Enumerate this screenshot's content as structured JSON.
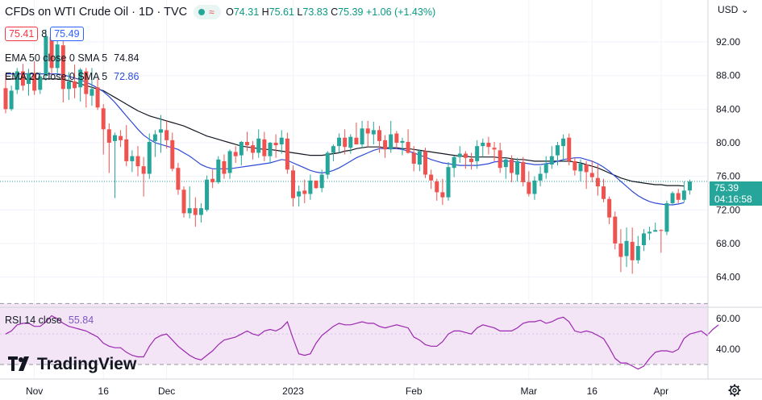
{
  "header": {
    "title": "CFDs on WTI Crude Oil · 1D · TVC",
    "live_wave": "≈",
    "ohlc": {
      "o_label": "O",
      "o": "74.31",
      "h_label": "H",
      "h": "75.61",
      "l_label": "L",
      "l": "73.83",
      "c_label": "C",
      "c": "75.39",
      "change": "+1.06 (+1.43%)"
    }
  },
  "quote": {
    "bid": "75.41",
    "spread": "8",
    "ask": "75.49"
  },
  "indicators": {
    "ema50": {
      "label": "EMA 50 close 0 SMA 5",
      "value": "74.84"
    },
    "ema20": {
      "label": "EMA 20 close 0 SMA 5",
      "value": "72.86"
    },
    "rsi": {
      "label": "RSI 14 close",
      "value": "55.84"
    }
  },
  "axis": {
    "currency": "USD"
  },
  "last_price": {
    "price": "75.39",
    "countdown": "04:16:58"
  },
  "branding": {
    "logo": "TradingView"
  },
  "colors": {
    "up": "#26a69a",
    "down": "#ef5350",
    "ema50": "#131722",
    "ema20": "#2d4ad6",
    "rsi": "#9c27b0",
    "rsi_band": "#f3e5f5"
  },
  "chart_data": {
    "type": "candlestick",
    "price_ylim": [
      60.5,
      97
    ],
    "price_ticks": [
      "64.00",
      "68.00",
      "72.00",
      "76.00",
      "80.00",
      "84.00",
      "88.00",
      "92.00"
    ],
    "rsi_ylim": [
      21,
      67
    ],
    "rsi_ticks": [
      "40.00",
      "60.00"
    ],
    "rsi_band": [
      30,
      70
    ],
    "x_ticks": [
      {
        "label": "Nov",
        "i": 5
      },
      {
        "label": "16",
        "i": 17
      },
      {
        "label": "Dec",
        "i": 28
      },
      {
        "label": "2023",
        "i": 50
      },
      {
        "label": "Feb",
        "i": 71
      },
      {
        "label": "Mar",
        "i": 91
      },
      {
        "label": "16",
        "i": 102
      },
      {
        "label": "Apr",
        "i": 114
      }
    ],
    "candles": [
      [
        86.5,
        88.2,
        83.5,
        84.0
      ],
      [
        84.0,
        86.8,
        83.8,
        86.2
      ],
      [
        86.3,
        88.9,
        85.8,
        88.5
      ],
      [
        88.5,
        89.4,
        86.2,
        86.8
      ],
      [
        87.0,
        88.8,
        85.6,
        88.3
      ],
      [
        88.3,
        89.7,
        85.7,
        86.2
      ],
      [
        86.3,
        88.4,
        85.8,
        87.9
      ],
      [
        88.0,
        93.5,
        87.4,
        92.7
      ],
      [
        92.6,
        93.5,
        88.0,
        88.9
      ],
      [
        88.9,
        92.7,
        88.1,
        91.7
      ],
      [
        91.6,
        93.1,
        84.8,
        86.4
      ],
      [
        86.4,
        88.4,
        85.1,
        87.3
      ],
      [
        87.3,
        89.3,
        85.3,
        86.5
      ],
      [
        86.6,
        88.9,
        84.9,
        88.7
      ],
      [
        88.5,
        88.9,
        84.2,
        85.8
      ],
      [
        85.6,
        88.9,
        84.4,
        86.4
      ],
      [
        86.6,
        87.6,
        83.9,
        84.2
      ],
      [
        84.1,
        84.6,
        78.6,
        81.6
      ],
      [
        81.6,
        82.3,
        76.4,
        80.0
      ],
      [
        80.2,
        81.2,
        73.4,
        80.9
      ],
      [
        80.8,
        81.5,
        79.5,
        80.3
      ],
      [
        80.4,
        82.1,
        77.2,
        77.8
      ],
      [
        77.8,
        79.1,
        76.5,
        78.4
      ],
      [
        78.4,
        79.6,
        76.0,
        77.2
      ],
      [
        77.2,
        78.3,
        73.6,
        76.3
      ],
      [
        76.3,
        81.1,
        75.7,
        80.1
      ],
      [
        80.2,
        81.5,
        78.3,
        81.0
      ],
      [
        81.2,
        83.3,
        78.8,
        81.6
      ],
      [
        81.5,
        82.6,
        79.3,
        80.3
      ],
      [
        80.3,
        81.2,
        76.6,
        76.9
      ],
      [
        77.0,
        77.6,
        73.8,
        74.4
      ],
      [
        74.4,
        74.8,
        71.1,
        71.6
      ],
      [
        71.6,
        74.8,
        71.0,
        72.2
      ],
      [
        72.2,
        73.5,
        70.0,
        71.4
      ],
      [
        71.4,
        72.8,
        70.5,
        72.2
      ],
      [
        72.0,
        76.1,
        71.8,
        75.6
      ],
      [
        75.7,
        76.8,
        74.6,
        75.3
      ],
      [
        75.3,
        78.4,
        75.1,
        78.0
      ],
      [
        77.8,
        78.6,
        75.7,
        76.3
      ],
      [
        76.4,
        79.2,
        75.7,
        79.0
      ],
      [
        78.9,
        79.6,
        77.6,
        78.4
      ],
      [
        78.5,
        80.2,
        77.3,
        80.1
      ],
      [
        80.1,
        81.3,
        79.0,
        79.7
      ],
      [
        79.7,
        80.2,
        78.0,
        78.8
      ],
      [
        78.8,
        81.6,
        78.2,
        80.5
      ],
      [
        80.4,
        81.3,
        77.8,
        78.4
      ],
      [
        78.4,
        80.1,
        77.6,
        80.0
      ],
      [
        80.0,
        81.0,
        78.2,
        79.7
      ],
      [
        79.8,
        81.5,
        78.7,
        80.6
      ],
      [
        80.5,
        81.2,
        76.3,
        76.8
      ],
      [
        76.7,
        77.3,
        72.4,
        73.4
      ],
      [
        73.6,
        74.9,
        72.4,
        74.2
      ],
      [
        74.3,
        75.6,
        72.8,
        73.9
      ],
      [
        73.9,
        76.2,
        73.2,
        75.5
      ],
      [
        75.5,
        75.3,
        74.5,
        74.6
      ],
      [
        74.6,
        76.8,
        74.1,
        76.2
      ],
      [
        76.2,
        79.0,
        75.7,
        78.8
      ],
      [
        78.8,
        79.8,
        77.8,
        79.6
      ],
      [
        79.6,
        81.1,
        78.8,
        80.6
      ],
      [
        80.6,
        81.6,
        78.6,
        79.5
      ],
      [
        79.4,
        81.0,
        78.7,
        80.7
      ],
      [
        80.6,
        82.4,
        79.8,
        79.8
      ],
      [
        79.8,
        82.6,
        79.4,
        81.7
      ],
      [
        81.7,
        82.6,
        79.5,
        81.1
      ],
      [
        81.0,
        82.5,
        79.8,
        81.5
      ],
      [
        81.5,
        82.0,
        78.8,
        80.2
      ],
      [
        80.3,
        80.9,
        78.2,
        79.2
      ],
      [
        79.2,
        82.6,
        78.8,
        81.0
      ],
      [
        81.1,
        81.4,
        79.2,
        80.0
      ],
      [
        80.0,
        80.6,
        78.5,
        80.2
      ],
      [
        80.1,
        81.6,
        78.7,
        78.8
      ],
      [
        78.8,
        79.6,
        76.6,
        77.5
      ],
      [
        77.4,
        79.2,
        76.6,
        79.0
      ],
      [
        79.0,
        79.4,
        75.8,
        76.2
      ],
      [
        76.2,
        76.8,
        74.5,
        75.5
      ],
      [
        75.4,
        75.7,
        73.1,
        74.1
      ],
      [
        74.1,
        75.7,
        72.6,
        73.5
      ],
      [
        73.5,
        77.7,
        73.1,
        77.1
      ],
      [
        77.0,
        78.4,
        75.9,
        78.3
      ],
      [
        78.3,
        79.6,
        77.6,
        78.7
      ],
      [
        78.7,
        79.0,
        76.9,
        78.2
      ],
      [
        78.1,
        78.8,
        76.8,
        77.7
      ],
      [
        77.8,
        80.3,
        76.9,
        79.6
      ],
      [
        79.6,
        80.5,
        78.3,
        80.0
      ],
      [
        80.0,
        80.7,
        78.6,
        79.5
      ],
      [
        79.4,
        80.1,
        77.8,
        79.2
      ],
      [
        79.1,
        80.0,
        76.4,
        77.0
      ],
      [
        77.1,
        78.2,
        75.7,
        78.0
      ],
      [
        78.0,
        78.5,
        75.3,
        76.4
      ],
      [
        76.2,
        78.2,
        75.4,
        77.8
      ],
      [
        77.7,
        78.3,
        74.8,
        75.3
      ],
      [
        75.3,
        76.6,
        73.6,
        73.9
      ],
      [
        73.9,
        76.0,
        73.2,
        75.5
      ],
      [
        75.5,
        77.2,
        74.8,
        76.3
      ],
      [
        76.4,
        78.4,
        75.7,
        77.5
      ],
      [
        77.4,
        79.6,
        76.9,
        78.4
      ],
      [
        78.5,
        80.1,
        77.3,
        79.7
      ],
      [
        79.6,
        81.0,
        77.7,
        80.5
      ],
      [
        80.6,
        81.1,
        77.3,
        77.8
      ],
      [
        77.8,
        78.2,
        76.1,
        76.7
      ],
      [
        76.6,
        78.0,
        75.4,
        77.5
      ],
      [
        77.4,
        77.8,
        74.5,
        76.5
      ],
      [
        76.4,
        77.9,
        75.3,
        75.9
      ],
      [
        75.8,
        77.4,
        73.7,
        74.8
      ],
      [
        74.8,
        75.7,
        72.9,
        73.3
      ],
      [
        73.3,
        73.6,
        70.3,
        71.1
      ],
      [
        71.2,
        71.8,
        67.3,
        68.0
      ],
      [
        68.0,
        69.7,
        64.6,
        66.4
      ],
      [
        66.5,
        69.9,
        65.2,
        68.3
      ],
      [
        68.2,
        69.9,
        64.4,
        66.0
      ],
      [
        66.0,
        68.9,
        65.6,
        67.7
      ],
      [
        67.8,
        69.7,
        67.1,
        69.2
      ],
      [
        69.2,
        70.0,
        68.4,
        69.4
      ],
      [
        69.4,
        70.5,
        69.5,
        69.6
      ],
      [
        69.6,
        69.7,
        66.9,
        69.5
      ],
      [
        69.4,
        73.1,
        69.0,
        72.8
      ],
      [
        72.8,
        74.2,
        72.6,
        74.0
      ],
      [
        74.0,
        74.5,
        72.8,
        73.2
      ],
      [
        73.2,
        75.4,
        72.9,
        74.3
      ],
      [
        74.31,
        75.61,
        73.83,
        75.39
      ]
    ],
    "ema50": [
      87.6,
      87.6,
      87.6,
      87.6,
      87.6,
      87.6,
      87.6,
      87.6,
      87.6,
      87.6,
      87.5,
      87.4,
      87.2,
      87.0,
      86.8,
      86.6,
      86.4,
      86.2,
      85.8,
      85.4,
      85.0,
      84.6,
      84.2,
      83.8,
      83.5,
      83.2,
      83.0,
      82.8,
      82.6,
      82.4,
      82.2,
      82.0,
      81.7,
      81.4,
      81.1,
      80.8,
      80.6,
      80.4,
      80.2,
      80.0,
      79.8,
      79.6,
      79.5,
      79.4,
      79.3,
      79.2,
      79.2,
      79.1,
      79.0,
      78.9,
      78.8,
      78.7,
      78.6,
      78.5,
      78.5,
      78.5,
      78.6,
      78.7,
      78.8,
      79.0,
      79.1,
      79.3,
      79.4,
      79.5,
      79.5,
      79.5,
      79.4,
      79.4,
      79.4,
      79.3,
      79.3,
      79.2,
      79.1,
      79.0,
      78.9,
      78.8,
      78.7,
      78.6,
      78.5,
      78.4,
      78.4,
      78.3,
      78.3,
      78.3,
      78.3,
      78.3,
      78.2,
      78.2,
      78.1,
      78.0,
      78.0,
      77.9,
      77.8,
      77.8,
      77.8,
      77.8,
      77.8,
      77.8,
      77.8,
      77.7,
      77.6,
      77.4,
      77.2,
      77.0,
      76.7,
      76.4,
      76.1,
      75.8,
      75.6,
      75.4,
      75.3,
      75.2,
      75.1,
      75.0,
      75.0,
      74.9,
      74.9,
      74.9,
      74.84
    ],
    "ema20": [
      88.2,
      88.2,
      88.2,
      88.2,
      88.2,
      88.2,
      88.2,
      88.2,
      88.2,
      88.2,
      88.1,
      87.9,
      87.7,
      87.5,
      87.2,
      86.9,
      86.5,
      86.1,
      85.5,
      84.8,
      84.0,
      83.2,
      82.4,
      81.6,
      80.9,
      80.4,
      80.0,
      79.8,
      79.6,
      79.4,
      79.2,
      78.8,
      78.4,
      77.9,
      77.4,
      77.1,
      76.9,
      76.9,
      76.9,
      76.9,
      77.0,
      77.1,
      77.2,
      77.3,
      77.4,
      77.5,
      77.6,
      77.8,
      78.0,
      77.9,
      77.6,
      77.3,
      77.0,
      76.7,
      76.5,
      76.4,
      76.5,
      76.7,
      77.0,
      77.4,
      77.8,
      78.2,
      78.5,
      78.8,
      79.1,
      79.3,
      79.3,
      79.3,
      79.3,
      79.2,
      79.0,
      78.8,
      78.5,
      78.3,
      78.0,
      77.8,
      77.6,
      77.5,
      77.4,
      77.3,
      77.3,
      77.3,
      77.3,
      77.4,
      77.5,
      77.7,
      77.8,
      77.8,
      77.8,
      77.7,
      77.6,
      77.5,
      77.4,
      77.4,
      77.5,
      77.6,
      77.8,
      78.0,
      78.1,
      78.2,
      78.2,
      78.0,
      77.8,
      77.5,
      77.1,
      76.6,
      76.0,
      75.4,
      74.8,
      74.2,
      73.7,
      73.3,
      73.0,
      72.8,
      72.7,
      72.6,
      72.6,
      72.7,
      72.86
    ],
    "rsi": [
      50,
      52,
      56,
      57,
      57,
      55,
      55,
      58,
      62,
      60,
      57,
      55,
      54,
      53,
      52,
      50,
      48,
      44,
      42,
      41,
      41,
      38,
      36,
      35,
      35,
      42,
      47,
      49,
      50,
      46,
      42,
      39,
      36,
      34,
      33,
      36,
      39,
      43,
      46,
      47,
      48,
      50,
      52,
      50,
      49,
      52,
      53,
      52,
      54,
      58,
      47,
      37,
      36,
      37,
      44,
      49,
      52,
      55,
      57,
      56,
      56,
      57,
      58,
      57,
      57,
      55,
      54,
      55,
      56,
      55,
      54,
      48,
      46,
      43,
      42,
      42,
      45,
      50,
      52,
      52,
      51,
      50,
      54,
      56,
      55,
      54,
      52,
      52,
      52,
      54,
      57,
      58,
      58,
      59,
      57,
      58,
      60,
      61,
      58,
      52,
      51,
      52,
      51,
      49,
      47,
      41,
      34,
      31,
      31,
      29,
      27,
      29,
      34,
      38,
      39,
      39,
      38,
      40,
      47,
      50,
      51,
      52,
      49,
      53,
      56
    ]
  }
}
